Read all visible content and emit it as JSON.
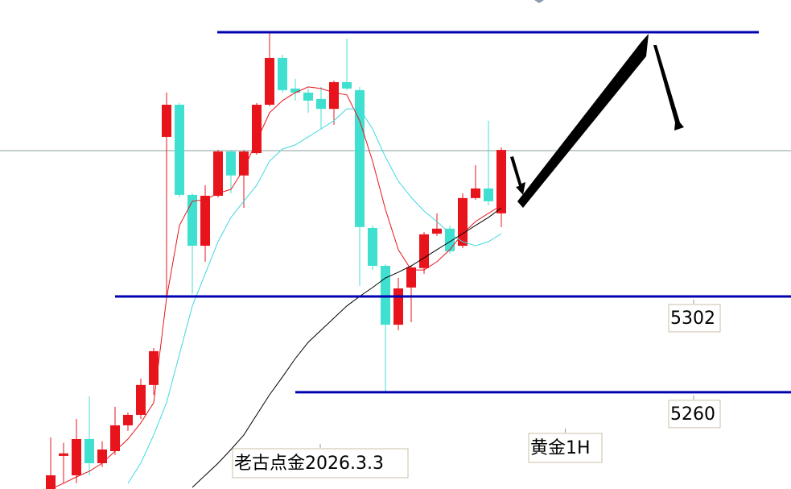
{
  "chart_data": {
    "type": "candlestick",
    "title": "黄金1H",
    "annotation": "老古点金2026.3.3",
    "ylim": [
      5217.6,
      5431.9
    ],
    "open": [
      5217.6,
      5232.1,
      5223.6,
      5239.5,
      5228.9,
      5234.2,
      5245.5,
      5250.1,
      5263.2,
      5371.9,
      5386.0,
      5346.5,
      5324.2,
      5346.1,
      5365.5,
      5355.0,
      5364.8,
      5386.0,
      5406.5,
      5393.1,
      5391.3,
      5388.5,
      5384.2,
      5395.9,
      5392.4,
      5332.0,
      5315.4,
      5289.6,
      5305.9,
      5314.4,
      5329.5,
      5331.7,
      5324.2,
      5345.1,
      5349.3,
      5338.4
    ],
    "high": [
      5240.2,
      5237.8,
      5248.3,
      5258.2,
      5238.5,
      5253.6,
      5251.2,
      5266.0,
      5279.4,
      5391.3,
      5386.7,
      5347.2,
      5350.7,
      5366.2,
      5366.2,
      5366.2,
      5386.7,
      5417.8,
      5407.9,
      5397.3,
      5393.1,
      5393.8,
      5396.6,
      5415.0,
      5393.8,
      5333.1,
      5316.1,
      5310.1,
      5315.4,
      5330.2,
      5338.4,
      5333.1,
      5347.2,
      5359.5,
      5379.0,
      5367.3
    ],
    "low": [
      5217.6,
      5220.1,
      5220.1,
      5223.6,
      5227.2,
      5232.5,
      5243.0,
      5248.3,
      5258.9,
      5302.0,
      5345.4,
      5303.1,
      5317.2,
      5345.4,
      5347.2,
      5340.8,
      5364.1,
      5385.3,
      5391.3,
      5387.8,
      5382.5,
      5375.4,
      5377.2,
      5392.4,
      5306.6,
      5313.6,
      5260.0,
      5287.2,
      5290.7,
      5311.9,
      5328.5,
      5320.7,
      5323.2,
      5344.4,
      5341.9,
      5332.4
    ],
    "close": [
      5223.6,
      5233.2,
      5239.5,
      5228.9,
      5234.9,
      5245.5,
      5250.1,
      5263.2,
      5278.0,
      5386.0,
      5346.5,
      5324.2,
      5346.1,
      5365.5,
      5355.0,
      5365.5,
      5386.0,
      5406.5,
      5392.4,
      5391.3,
      5387.8,
      5384.2,
      5395.9,
      5393.1,
      5332.4,
      5315.4,
      5289.6,
      5305.5,
      5314.7,
      5329.2,
      5331.7,
      5321.8,
      5345.1,
      5349.3,
      5343.7,
      5366.2
    ],
    "up_color": "#e8141b",
    "down_color": "#40e0d0",
    "ma_lines": [
      {
        "color": "#e8141b",
        "values": [
          5217.6,
          5220.1,
          5222.9,
          5225.4,
          5228.9,
          5234.2,
          5239.5,
          5246.6,
          5255.4,
          5301.3,
          5333.1,
          5343.7,
          5344.4,
          5347.2,
          5348.9,
          5357.8,
          5370.1,
          5382.5,
          5387.8,
          5391.3,
          5393.8,
          5393.1,
          5391.3,
          5390.3,
          5379.0,
          5361.3,
          5340.1,
          5322.5,
          5313.6,
          5313.6,
          5317.2,
          5322.5,
          5329.5,
          5334.8,
          5338.4,
          5341.9
        ]
      },
      {
        "color": "#40d8e0",
        "values": [
          null,
          null,
          null,
          null,
          null,
          null,
          5220.1,
          5228.9,
          5241.3,
          5255.4,
          5276.6,
          5297.8,
          5311.9,
          5326.0,
          5336.6,
          5343.7,
          5350.7,
          5361.3,
          5366.6,
          5368.4,
          5371.9,
          5375.4,
          5379.0,
          5384.2,
          5384.2,
          5375.4,
          5363.1,
          5352.5,
          5345.4,
          5339.4,
          5334.8,
          5329.5,
          5326.0,
          5324.2,
          5326.0,
          5329.5
        ]
      },
      {
        "color": "#000000",
        "values": [
          null,
          null,
          null,
          null,
          null,
          null,
          null,
          null,
          null,
          null,
          null,
          5218.3,
          5223.6,
          5228.9,
          5234.9,
          5241.3,
          5250.1,
          5258.9,
          5266.7,
          5274.8,
          5281.9,
          5287.2,
          5292.5,
          5297.8,
          5302.0,
          5305.9,
          5310.1,
          5312.6,
          5315.4,
          5318.9,
          5322.5,
          5326.0,
          5329.5,
          5333.1,
          5336.6,
          5340.8
        ]
      }
    ],
    "resistance": 5417.8,
    "levels": [
      5302,
      5260
    ],
    "level_color": "#0000b0",
    "last_price": 5365.9
  }
}
